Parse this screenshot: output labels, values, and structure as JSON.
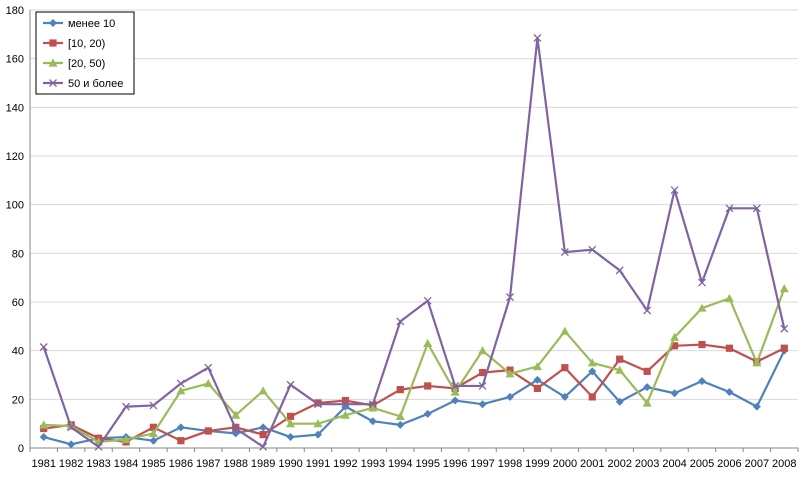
{
  "chart_data": {
    "type": "line",
    "categories": [
      "1981",
      "1982",
      "1983",
      "1984",
      "1985",
      "1986",
      "1987",
      "1988",
      "1989",
      "1990",
      "1991",
      "1992",
      "1993",
      "1994",
      "1995",
      "1996",
      "1997",
      "1998",
      "1999",
      "2000",
      "2001",
      "2002",
      "2003",
      "2004",
      "2005",
      "2006",
      "2007",
      "2008"
    ],
    "ylim": [
      0,
      180
    ],
    "yticks": [
      0,
      20,
      40,
      60,
      80,
      100,
      120,
      140,
      160,
      180
    ],
    "grid": true,
    "legend": "top-left",
    "series": [
      {
        "name": "менее 10",
        "color": "#4f81bd",
        "marker": "diamond",
        "values": [
          4.5,
          1.5,
          4,
          4.5,
          3,
          8.5,
          7,
          6,
          8.5,
          4.5,
          5.5,
          17,
          11,
          9.5,
          14,
          19.5,
          18,
          21,
          28,
          21,
          31.5,
          19,
          25,
          22.5,
          27.5,
          23,
          17,
          40
        ]
      },
      {
        "name": "[10, 20)",
        "color": "#c0504d",
        "marker": "square",
        "values": [
          8,
          9.5,
          4,
          2.5,
          8.5,
          3,
          7,
          8.5,
          5.5,
          13,
          18.5,
          19.5,
          17.5,
          24,
          25.5,
          24.5,
          31,
          32,
          24.5,
          33,
          21,
          36.5,
          31.5,
          42,
          42.5,
          41,
          35.5,
          41
        ]
      },
      {
        "name": "[20, 50)",
        "color": "#9bbb59",
        "marker": "triangle",
        "values": [
          9.5,
          9,
          2.5,
          3.5,
          6,
          23.5,
          26.5,
          13.5,
          23.5,
          10,
          10,
          13.5,
          16.5,
          13,
          43,
          23,
          40,
          30.5,
          33.5,
          48,
          35,
          32,
          18.5,
          45.5,
          57.5,
          61.5,
          35,
          65.5
        ]
      },
      {
        "name": "50 и более",
        "color": "#8064a2",
        "marker": "x",
        "values": [
          41.5,
          8.5,
          0.5,
          17,
          17.5,
          26.5,
          33,
          8,
          0.5,
          26,
          18,
          18,
          18,
          52,
          60.5,
          25.5,
          25.5,
          62,
          168.5,
          80.5,
          81.5,
          73,
          56.5,
          106,
          68,
          98.5,
          98.5,
          49
        ]
      }
    ]
  }
}
